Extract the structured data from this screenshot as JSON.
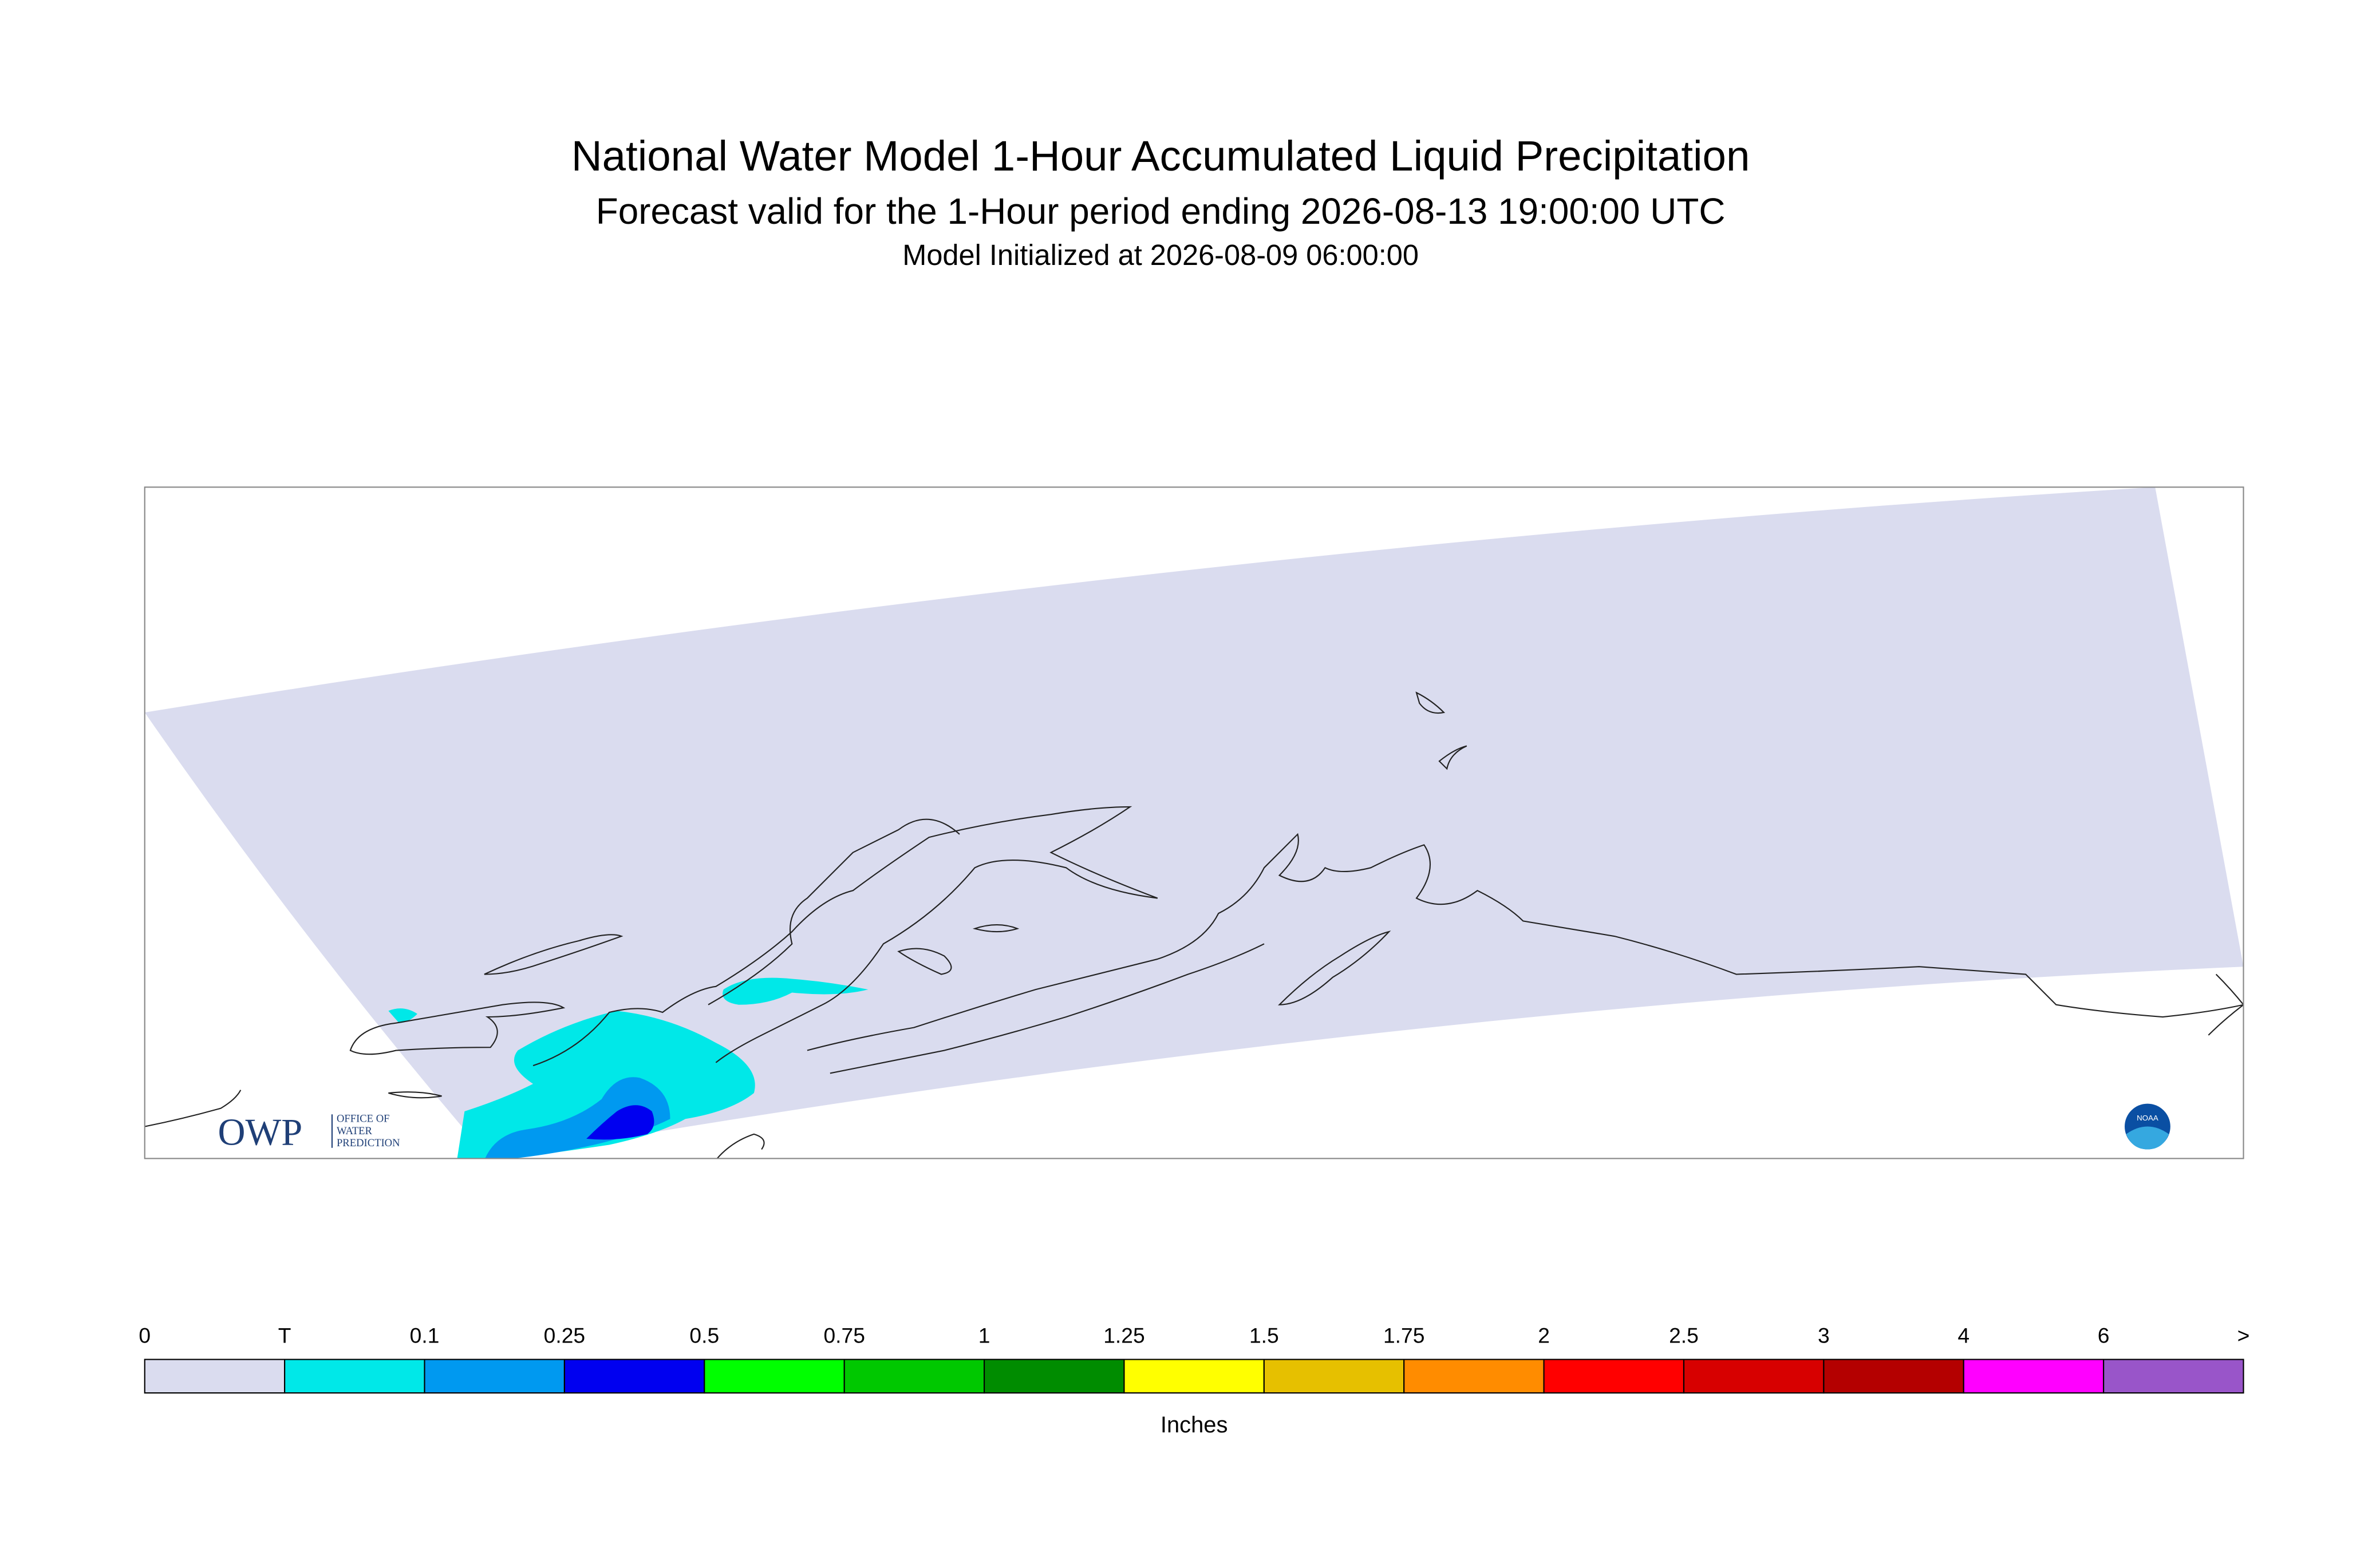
{
  "header": {
    "title": "National Water Model 1-Hour Accumulated Liquid Precipitation",
    "subtitle": "Forecast valid for the 1-Hour period ending 2026-08-13 19:00:00 UTC",
    "init": "Model Initialized at 2026-08-09 06:00:00"
  },
  "logo": {
    "owp": "OWP",
    "lines": [
      "OFFICE OF",
      "WATER",
      "PREDICTION"
    ],
    "noaa": "NOAA"
  },
  "legend": {
    "labels": [
      "0",
      "T",
      "0.1",
      "0.25",
      "0.5",
      "0.75",
      "1",
      "1.25",
      "1.5",
      "1.75",
      "2",
      "2.5",
      "3",
      "4",
      "6",
      ">"
    ],
    "colors": [
      "#dadcef",
      "#00e8e8",
      "#0099f0",
      "#0000f0",
      "#00ff00",
      "#00c800",
      "#008c00",
      "#ffff00",
      "#e6c000",
      "#ff8c00",
      "#ff0000",
      "#d70000",
      "#b40000",
      "#ff00ff",
      "#9955c9"
    ],
    "unit": "Inches"
  }
}
